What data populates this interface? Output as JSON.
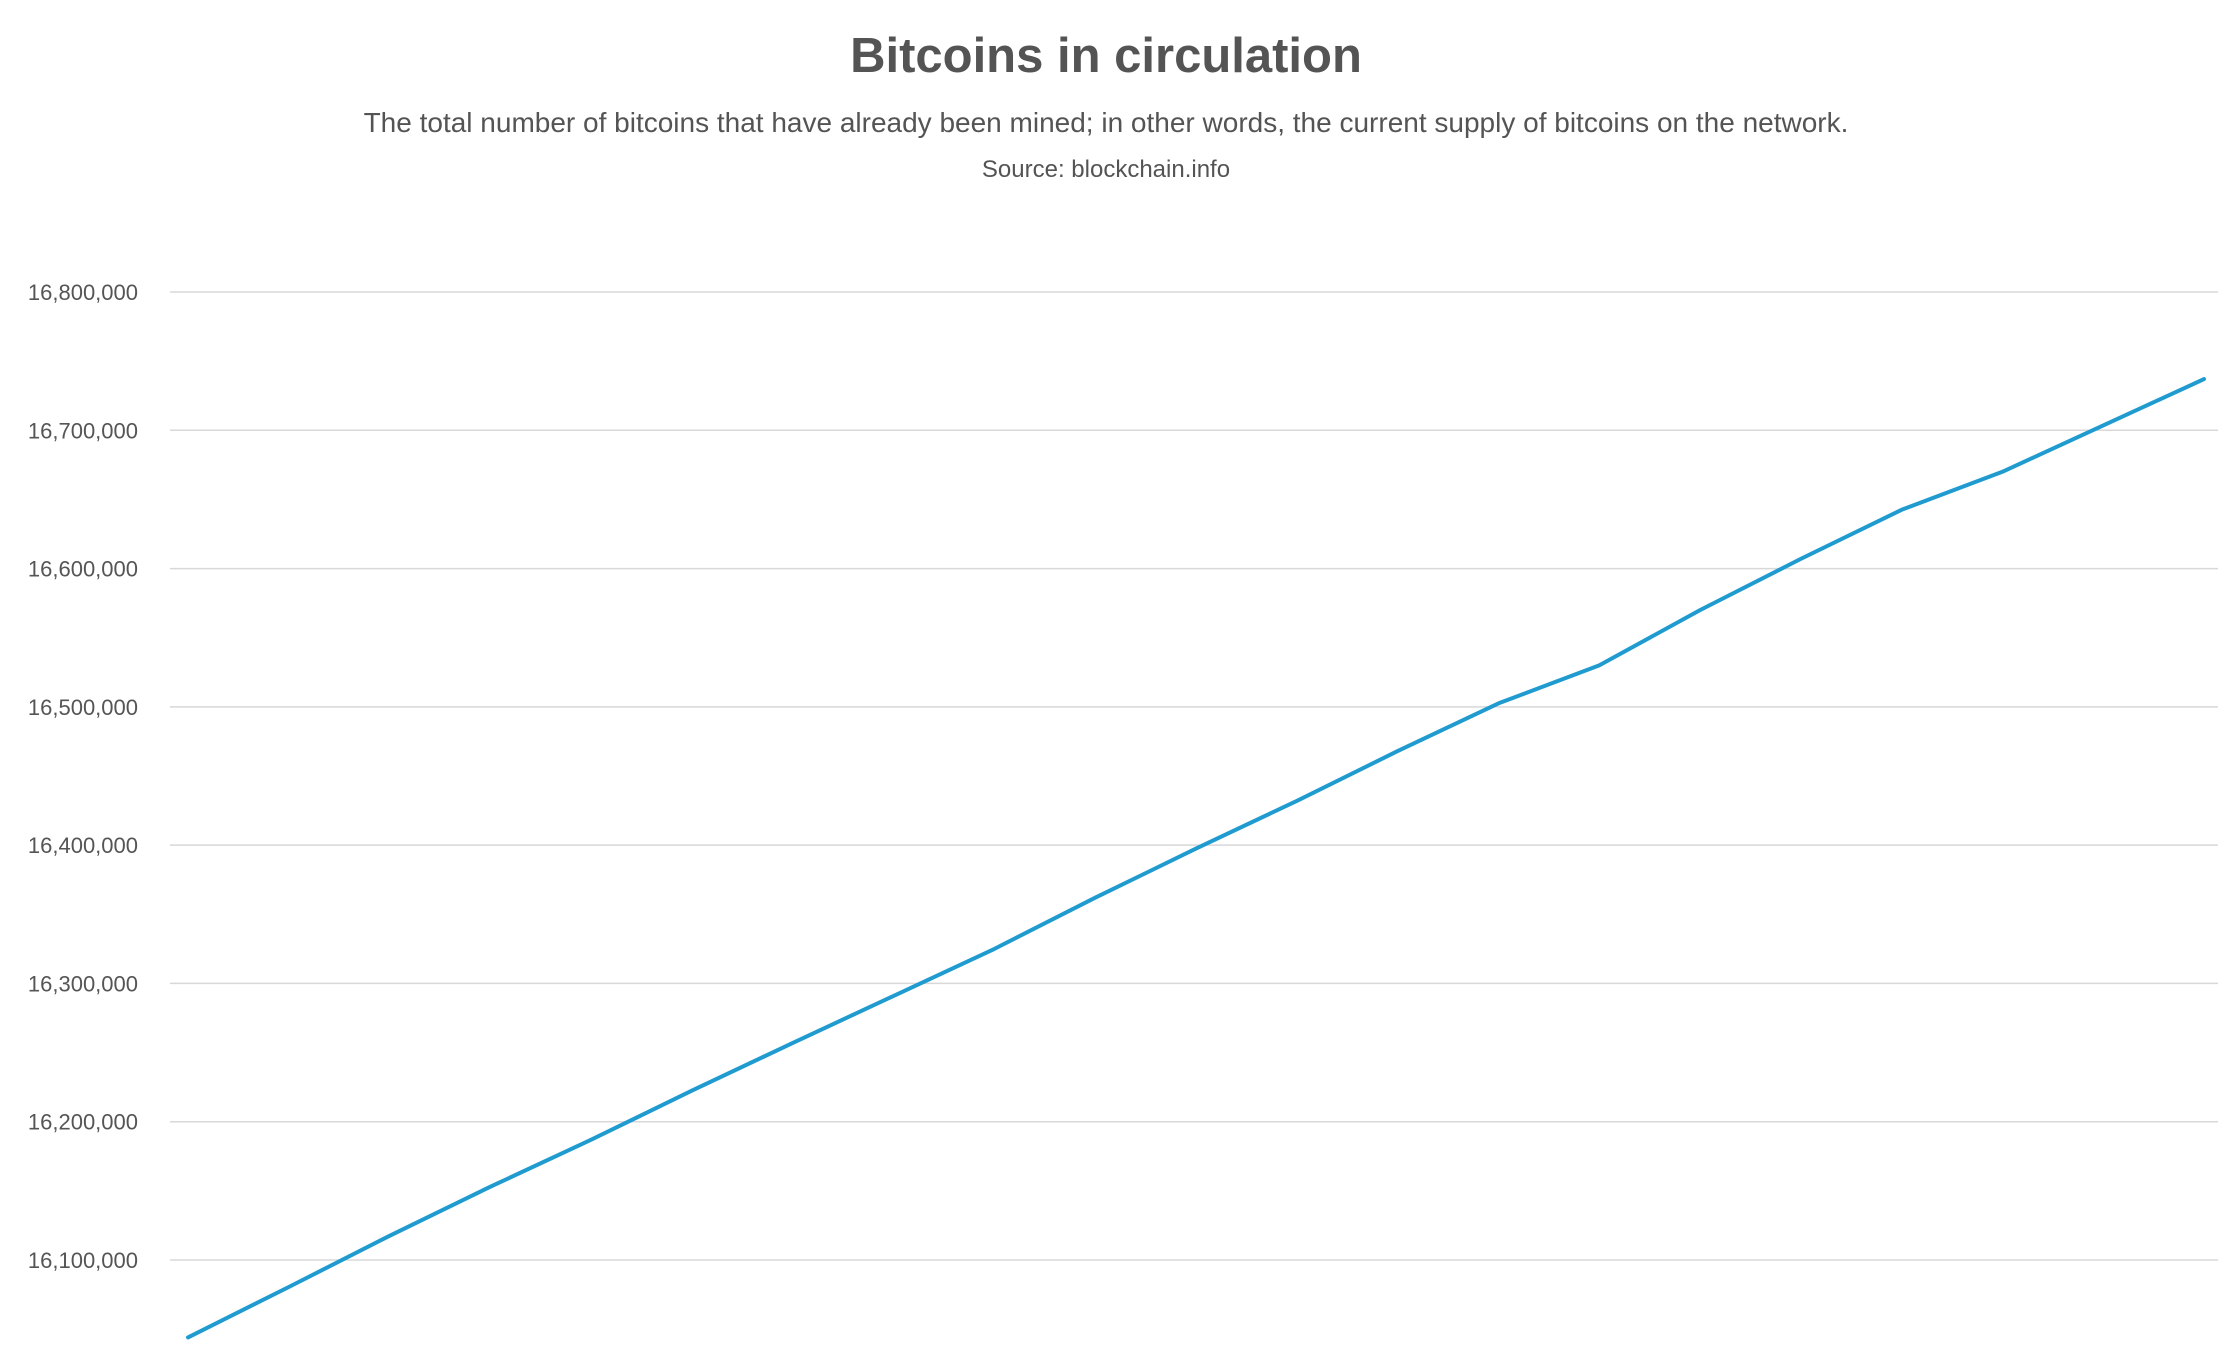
{
  "chart_data": {
    "type": "line",
    "title": "Bitcoins in circulation",
    "subtitle": "The total number of bitcoins that have already been mined; in other words, the current supply of bitcoins on the network.",
    "source": "Source: blockchain.info",
    "xlabel": "",
    "ylabel": "",
    "ylim": [
      16042000,
      16815000
    ],
    "yticks": [
      16100000,
      16200000,
      16300000,
      16400000,
      16500000,
      16600000,
      16700000,
      16800000
    ],
    "ytick_labels": [
      "16,100,000",
      "16,200,000",
      "16,300,000",
      "16,400,000",
      "16,500,000",
      "16,600,000",
      "16,700,000",
      "16,800,000"
    ],
    "grid": true,
    "legend": "none",
    "series_color": "#1f9bd0",
    "gridline_color": "#d8d8d8",
    "x": [
      0,
      10,
      20,
      30,
      40,
      50,
      60,
      70,
      80,
      90,
      100,
      110,
      120,
      130,
      140,
      150,
      160,
      170,
      180,
      190,
      200
    ],
    "series": [
      {
        "values": [
          16044000,
          16080500,
          16117500,
          16153000,
          16187000,
          16222500,
          16257000,
          16291000,
          16325000,
          16362000,
          16397500,
          16432000,
          16468000,
          16502500,
          16530000,
          16570000,
          16607000,
          16642500,
          16670000,
          16703500,
          16737000
        ]
      }
    ]
  }
}
